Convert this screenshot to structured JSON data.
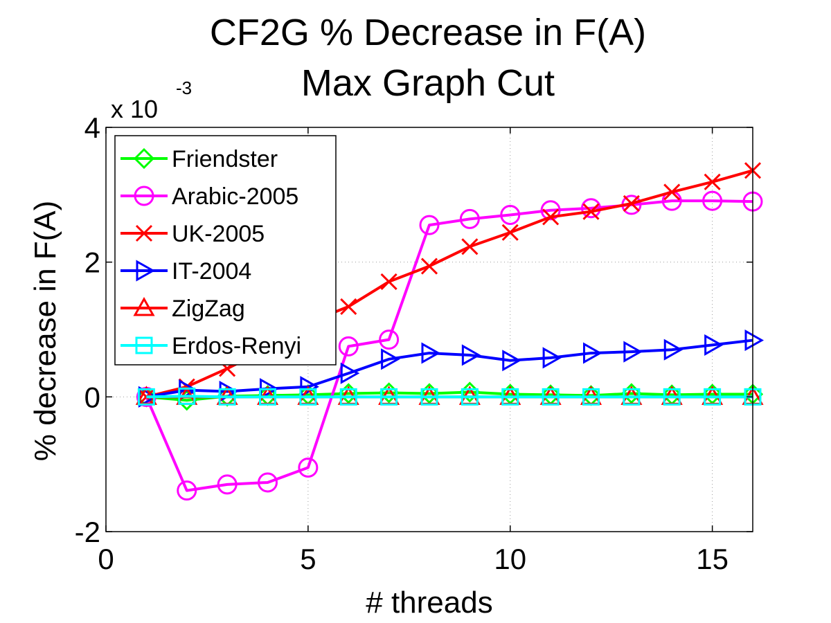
{
  "chart_data": {
    "type": "line",
    "title_lines": [
      "CF2G % Decrease in F(A)",
      "Max Graph Cut"
    ],
    "xlabel": "# threads",
    "ylabel": "% decrease in F(A)",
    "y_multiplier_label": "x 10",
    "y_multiplier_exponent": "-3",
    "xlim": [
      0,
      16
    ],
    "ylim": [
      -2,
      4
    ],
    "xticks": [
      0,
      5,
      10,
      15
    ],
    "xtick_labels": [
      "0",
      "5",
      "10",
      "15"
    ],
    "yticks": [
      -2,
      0,
      2,
      4
    ],
    "ytick_labels": [
      "-2",
      "0",
      "2",
      "4"
    ],
    "grid": true,
    "legend_position": "top-left",
    "x": [
      1,
      2,
      3,
      4,
      5,
      6,
      7,
      8,
      9,
      10,
      11,
      12,
      13,
      14,
      15,
      16
    ],
    "series": [
      {
        "name": "Friendster",
        "color": "#00ff00",
        "marker": "diamond",
        "values": [
          0.0,
          -0.05,
          0.01,
          0.02,
          0.03,
          0.05,
          0.06,
          0.05,
          0.07,
          0.04,
          0.03,
          0.02,
          0.05,
          0.03,
          0.04,
          0.04
        ]
      },
      {
        "name": "Arabic-2005",
        "color": "#ff00ff",
        "marker": "circle",
        "values": [
          0.0,
          -1.39,
          -1.3,
          -1.27,
          -1.05,
          0.75,
          0.85,
          2.55,
          2.64,
          2.7,
          2.77,
          2.8,
          2.85,
          2.91,
          2.91,
          2.9
        ]
      },
      {
        "name": "UK-2005",
        "color": "#ff0000",
        "marker": "x",
        "values": [
          0.0,
          0.15,
          0.42,
          0.72,
          1.1,
          1.34,
          1.71,
          1.94,
          2.23,
          2.44,
          2.67,
          2.75,
          2.87,
          3.04,
          3.19,
          3.36
        ]
      },
      {
        "name": "IT-2004",
        "color": "#0000ff",
        "marker": "triangle-right",
        "values": [
          0.0,
          0.1,
          0.08,
          0.12,
          0.15,
          0.35,
          0.56,
          0.65,
          0.62,
          0.54,
          0.58,
          0.65,
          0.67,
          0.7,
          0.77,
          0.84
        ]
      },
      {
        "name": "ZigZag",
        "color": "#ff0000",
        "marker": "triangle-up",
        "values": [
          0.0,
          0.0,
          0.0,
          0.0,
          0.0,
          0.0,
          0.0,
          0.0,
          0.0,
          0.0,
          0.0,
          0.0,
          0.0,
          0.0,
          0.0,
          0.0
        ]
      },
      {
        "name": "Erdos-Renyi",
        "color": "#00ffff",
        "marker": "square",
        "values": [
          0.0,
          0.01,
          0.0,
          0.0,
          0.0,
          0.0,
          0.0,
          0.0,
          0.0,
          0.0,
          0.0,
          0.0,
          0.0,
          0.0,
          0.0,
          0.0
        ]
      }
    ]
  }
}
